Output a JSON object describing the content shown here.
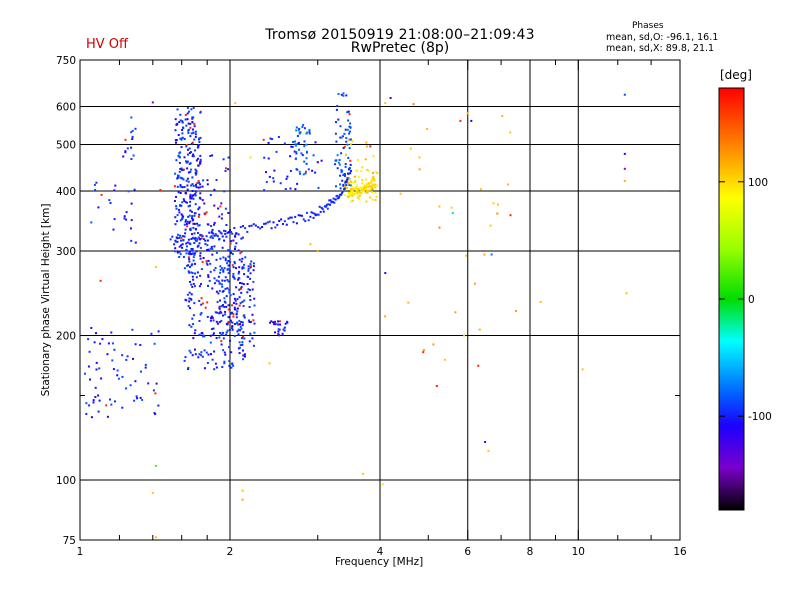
{
  "header": {
    "title_line1": "Tromsø 20150919 21:08:00–21:09:43",
    "title_line2": "RwPretec (8p)",
    "hv_status": "HV Off",
    "phases_title": "Phases",
    "phase_o": "mean, sd,O: -96.1, 16.1",
    "phase_x": "mean, sd,X: 89.8, 21.1"
  },
  "colorbar": {
    "unit": "[deg]",
    "ticks": [
      "100",
      "0",
      "-100"
    ],
    "tick_values": [
      100,
      0,
      -100
    ],
    "range": [
      -180,
      180
    ]
  },
  "chart_data": {
    "type": "scatter",
    "title": "Tromsø 20150919 21:08:00–21:09:43",
    "subtitle": "RwPretec (8p)",
    "xlabel": "Frequency [MHz]",
    "ylabel": "Stationary phase Virtual Height [km]",
    "x_scale": "log",
    "y_scale": "log",
    "xlim": [
      1,
      16
    ],
    "ylim": [
      75,
      750
    ],
    "x_ticks": [
      1,
      2,
      4,
      6,
      8,
      10,
      16
    ],
    "x_tick_labels": [
      "1",
      "2",
      "4",
      "6",
      "8",
      "10",
      "16"
    ],
    "x_minor_ticks": [
      1.2,
      1.4,
      1.6,
      1.8,
      3,
      5,
      7,
      9,
      12,
      14
    ],
    "y_ticks": [
      75,
      100,
      200,
      300,
      400,
      500,
      600,
      750
    ],
    "y_tick_labels": [
      "75",
      "100",
      "200",
      "300",
      "400",
      "500",
      "600",
      "750"
    ],
    "y_minor_ticks": [
      150
    ],
    "grid": true,
    "color_by": "phase [deg]",
    "clusters": [
      {
        "x": [
          1.55,
          1.75
        ],
        "y": [
          290,
          600
        ],
        "phase": -110,
        "n": 260
      },
      {
        "x": [
          1.6,
          2.0
        ],
        "y": [
          330,
          480
        ],
        "phase": -115,
        "n": 60
      },
      {
        "x": [
          1.62,
          2.15
        ],
        "y": [
          170,
          330
        ],
        "phase": -110,
        "n": 300
      },
      {
        "x": [
          1.9,
          2.25
        ],
        "y": [
          190,
          290
        ],
        "phase": -110,
        "n": 120
      },
      {
        "x": [
          2.4,
          2.62
        ],
        "y": [
          200,
          215
        ],
        "phase": -115,
        "n": 25
      },
      {
        "x": [
          2.3,
          3.1
        ],
        "y": [
          400,
          520
        ],
        "phase": -110,
        "n": 40
      },
      {
        "x": [
          2.7,
          2.9
        ],
        "y": [
          430,
          550
        ],
        "phase": -95,
        "n": 40
      },
      {
        "x": [
          3.25,
          3.5
        ],
        "y": [
          400,
          640
        ],
        "phase": -100,
        "n": 70
      },
      {
        "x": [
          1.02,
          1.45
        ],
        "y": [
          135,
          210
        ],
        "phase": -110,
        "n": 70
      },
      {
        "x": [
          1.22,
          1.3
        ],
        "y": [
          300,
          600
        ],
        "phase": -110,
        "n": 25
      },
      {
        "x": [
          1.05,
          1.2
        ],
        "y": [
          330,
          420
        ],
        "phase": -110,
        "n": 12
      },
      {
        "x": [
          3.4,
          3.95
        ],
        "y": [
          380,
          440
        ],
        "phase": 110,
        "n": 60
      },
      {
        "x": [
          3.4,
          3.9
        ],
        "y": [
          420,
          520
        ],
        "phase": 120,
        "n": 18
      },
      {
        "x": [
          4.0,
          7.5
        ],
        "y": [
          160,
          620
        ],
        "phase": 130,
        "n": 25
      }
    ],
    "curves": [
      {
        "x": [
          1.52,
          1.7,
          1.85,
          2.0,
          2.3,
          2.6,
          2.9,
          3.1,
          3.25,
          3.4,
          3.5
        ],
        "y": [
          315,
          318,
          322,
          328,
          338,
          345,
          355,
          370,
          385,
          410,
          450
        ],
        "phase": -110
      },
      {
        "x": [
          3.45,
          3.55,
          3.65,
          3.75,
          3.85,
          3.9
        ],
        "y": [
          395,
          398,
          400,
          405,
          412,
          425
        ],
        "phase": 110
      }
    ],
    "points": [
      {
        "x": 12.4,
        "y": 635,
        "phase": -100
      },
      {
        "x": 12.4,
        "y": 478,
        "phase": -120
      },
      {
        "x": 12.4,
        "y": 445,
        "phase": -140
      },
      {
        "x": 12.4,
        "y": 420,
        "phase": 130
      },
      {
        "x": 12.5,
        "y": 245,
        "phase": 120
      },
      {
        "x": 4.2,
        "y": 625,
        "phase": -150
      },
      {
        "x": 4.1,
        "y": 610,
        "phase": 120
      },
      {
        "x": 4.1,
        "y": 270,
        "phase": -130
      },
      {
        "x": 5.8,
        "y": 560,
        "phase": 170
      },
      {
        "x": 6.1,
        "y": 560,
        "phase": -120
      },
      {
        "x": 5.2,
        "y": 157,
        "phase": 170
      },
      {
        "x": 6.3,
        "y": 173,
        "phase": 170
      },
      {
        "x": 6.5,
        "y": 120,
        "phase": -130
      },
      {
        "x": 6.6,
        "y": 115,
        "phase": 120
      },
      {
        "x": 6.7,
        "y": 295,
        "phase": -90
      },
      {
        "x": 8.4,
        "y": 235,
        "phase": 120
      },
      {
        "x": 10.2,
        "y": 170,
        "phase": 120
      },
      {
        "x": 7.3,
        "y": 530,
        "phase": 120
      },
      {
        "x": 6.9,
        "y": 375,
        "phase": 120
      },
      {
        "x": 1.1,
        "y": 260,
        "phase": 170
      },
      {
        "x": 1.45,
        "y": 402,
        "phase": 170
      },
      {
        "x": 1.4,
        "y": 612,
        "phase": -140
      },
      {
        "x": 1.42,
        "y": 278,
        "phase": 120
      },
      {
        "x": 1.4,
        "y": 94,
        "phase": 120
      },
      {
        "x": 1.42,
        "y": 76,
        "phase": 120
      },
      {
        "x": 2.12,
        "y": 95,
        "phase": 120
      },
      {
        "x": 2.12,
        "y": 91,
        "phase": 130
      },
      {
        "x": 3.7,
        "y": 103,
        "phase": 120
      },
      {
        "x": 4.05,
        "y": 98,
        "phase": 80
      },
      {
        "x": 1.42,
        "y": 107,
        "phase": 30
      },
      {
        "x": 5.4,
        "y": 178,
        "phase": 120
      },
      {
        "x": 7.5,
        "y": 225,
        "phase": 130
      },
      {
        "x": 2.4,
        "y": 175,
        "phase": 120
      },
      {
        "x": 2.9,
        "y": 310,
        "phase": 120
      },
      {
        "x": 3.0,
        "y": 300,
        "phase": 130
      },
      {
        "x": 4.4,
        "y": 395,
        "phase": 120
      },
      {
        "x": 4.8,
        "y": 470,
        "phase": 120
      },
      {
        "x": 5.6,
        "y": 360,
        "phase": -50
      },
      {
        "x": 5.9,
        "y": 200,
        "phase": 120
      },
      {
        "x": 2.2,
        "y": 470,
        "phase": 110
      },
      {
        "x": 2.1,
        "y": 250,
        "phase": 170
      },
      {
        "x": 2.05,
        "y": 610,
        "phase": 120
      }
    ]
  }
}
